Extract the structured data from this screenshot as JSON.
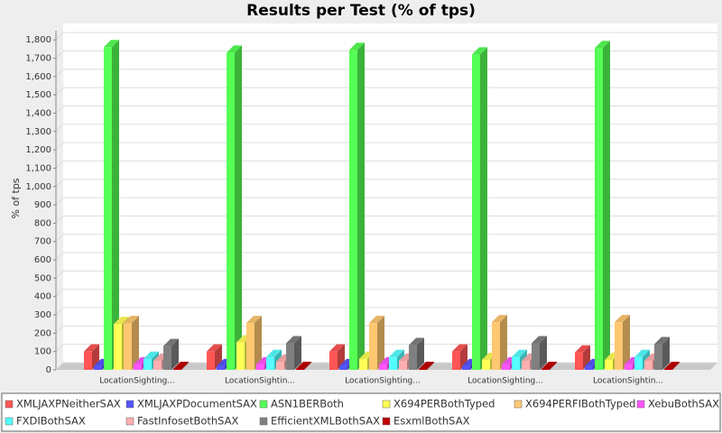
{
  "chart_data": {
    "type": "bar3d",
    "title": "Results per Test (% of tps)",
    "y_label": "% of tps",
    "categories": [
      "LocationSighting...",
      "LocationSightin...",
      "LocationSighting...",
      "LocationSighting...",
      "LocationSightin..."
    ],
    "series": [
      {
        "name": "XMLJAXPNeitherSAX",
        "color": "#ff5555",
        "values": [
          100,
          100,
          100,
          100,
          95
        ]
      },
      {
        "name": "XMLJAXPDocumentSAX",
        "color": "#5555ff",
        "values": [
          20,
          20,
          20,
          20,
          20
        ]
      },
      {
        "name": "ASN1BERBoth",
        "color": "#55ff55",
        "values": [
          1760,
          1730,
          1745,
          1720,
          1755
        ]
      },
      {
        "name": "X694PERBothTyped",
        "color": "#ffff55",
        "values": [
          250,
          150,
          60,
          55,
          55
        ]
      },
      {
        "name": "X694PERFIBothTyped",
        "color": "#ffc870",
        "values": [
          255,
          255,
          255,
          260,
          260
        ]
      },
      {
        "name": "XebuBothSAX",
        "color": "#ff55ff",
        "values": [
          30,
          30,
          30,
          30,
          30
        ]
      },
      {
        "name": "FXDIBothSAX",
        "color": "#55ffff",
        "values": [
          60,
          70,
          70,
          70,
          70
        ]
      },
      {
        "name": "FastInfosetBothSAX",
        "color": "#ffafaf",
        "values": [
          50,
          45,
          50,
          50,
          50
        ]
      },
      {
        "name": "EfficientXMLBothSAX",
        "color": "#808080",
        "values": [
          130,
          145,
          135,
          145,
          140
        ]
      },
      {
        "name": "EsxmlBothSAX",
        "color": "#c00000",
        "values": [
          5,
          5,
          5,
          5,
          5
        ]
      }
    ],
    "ylim": [
      0,
      1850
    ],
    "yticks": [
      0,
      100,
      200,
      300,
      400,
      500,
      600,
      700,
      800,
      900,
      {
        "value": 1000,
        "label": "1,000"
      },
      {
        "value": 1100,
        "label": "1,100"
      },
      {
        "value": 1200,
        "label": "1,200"
      },
      {
        "value": 1300,
        "label": "1,300"
      },
      {
        "value": 1400,
        "label": "1,400"
      },
      {
        "value": 1500,
        "label": "1,500"
      },
      {
        "value": 1600,
        "label": "1,600"
      },
      {
        "value": 1700,
        "label": "1,700"
      },
      {
        "value": 1800,
        "label": "1,800"
      }
    ],
    "grid": true
  }
}
